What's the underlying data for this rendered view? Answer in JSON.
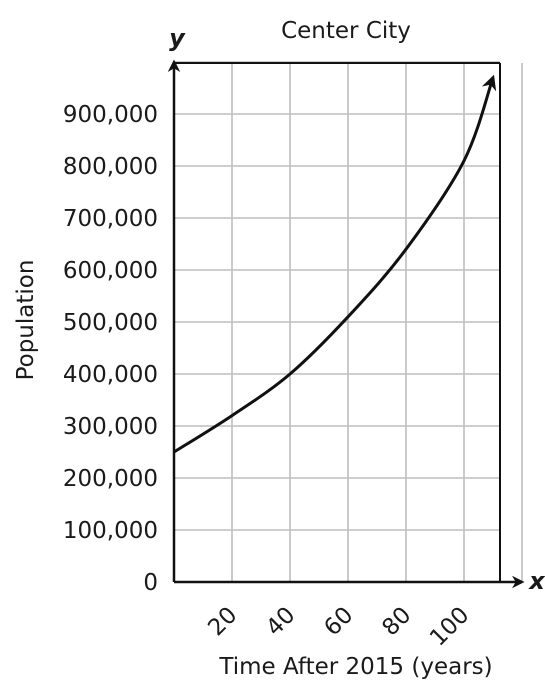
{
  "chart_data": {
    "type": "line",
    "title": "Center City",
    "xlabel": "Time After 2015 (years)",
    "ylabel": "Population",
    "x_axis_letter": "x",
    "y_axis_letter": "y",
    "xlim": [
      0,
      120
    ],
    "ylim": [
      0,
      1000000
    ],
    "x_grid": [
      0,
      20,
      40,
      60,
      80,
      100,
      120
    ],
    "y_grid": [
      0,
      100000,
      200000,
      300000,
      400000,
      500000,
      600000,
      700000,
      800000,
      900000,
      1000000
    ],
    "x_ticks": [
      {
        "value": 20,
        "label": "20"
      },
      {
        "value": 40,
        "label": "40"
      },
      {
        "value": 60,
        "label": "60"
      },
      {
        "value": 80,
        "label": "80"
      },
      {
        "value": 100,
        "label": "100"
      }
    ],
    "y_ticks": [
      {
        "value": 0,
        "label": "0"
      },
      {
        "value": 100000,
        "label": "100,000"
      },
      {
        "value": 200000,
        "label": "200,000"
      },
      {
        "value": 300000,
        "label": "300,000"
      },
      {
        "value": 400000,
        "label": "400,000"
      },
      {
        "value": 500000,
        "label": "500,000"
      },
      {
        "value": 600000,
        "label": "600,000"
      },
      {
        "value": 700000,
        "label": "700,000"
      },
      {
        "value": 800000,
        "label": "800,000"
      },
      {
        "value": 900000,
        "label": "900,000"
      }
    ],
    "grid": true,
    "series": [
      {
        "color": "#111111",
        "x": [
          0,
          20,
          40,
          60,
          80,
          100,
          110
        ],
        "y": [
          250000,
          320000,
          400000,
          510000,
          640000,
          810000,
          970000
        ]
      }
    ]
  }
}
